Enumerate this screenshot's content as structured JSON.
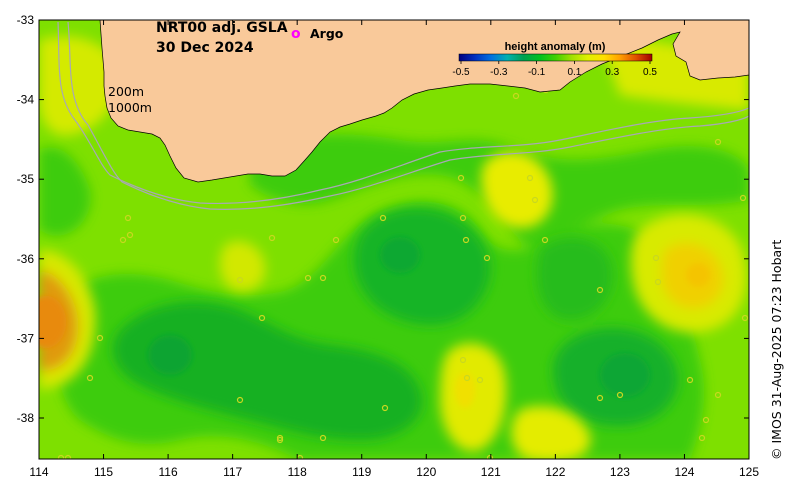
{
  "map": {
    "title_line1": "NRT00 adj. GSLA",
    "title_line2": "30 Dec 2024",
    "argo_symbol": "o",
    "argo_label": "Argo",
    "argo_color": "#ff00ff",
    "isobath_label_1": "200m",
    "isobath_label_2": "1000m",
    "credit": "© IMOS 31-Aug-2025 07:23 Hobart",
    "land_color": "#f9c99a",
    "isobath_color": "#a8a8b4"
  },
  "axes": {
    "x_ticks": [
      "114",
      "115",
      "116",
      "117",
      "118",
      "119",
      "120",
      "121",
      "122",
      "123",
      "124",
      "125"
    ],
    "y_ticks": [
      "-33",
      "-34",
      "-35",
      "-36",
      "-37",
      "-38"
    ]
  },
  "colorbar": {
    "title": "height anomaly (m)",
    "ticks": [
      "-0.5",
      "-0.3",
      "-0.1",
      "0.1",
      "0.3",
      "0.5"
    ],
    "colors": [
      "#000080",
      "#0030c0",
      "#0070e0",
      "#00b0b0",
      "#00a050",
      "#00c020",
      "#40d000",
      "#a0e000",
      "#e0f000",
      "#ffe000",
      "#ffa000",
      "#e05000",
      "#a00000"
    ]
  },
  "field": {
    "base_color": "#7ee000",
    "features": [
      {
        "name": "low-south-central",
        "color": "#14b024"
      },
      {
        "name": "low-north-central",
        "color": "#18b428"
      },
      {
        "name": "low-southeast",
        "color": "#16b02a"
      },
      {
        "name": "high-west",
        "color": "#e09a10"
      },
      {
        "name": "high-east",
        "color": "#f0d000"
      },
      {
        "name": "high-north-121",
        "color": "#e8ec00"
      },
      {
        "name": "high-south-121",
        "color": "#e2ea00"
      }
    ]
  }
}
